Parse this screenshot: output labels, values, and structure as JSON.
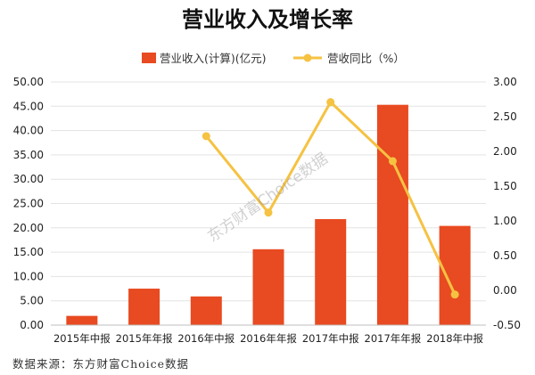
{
  "chart_data": {
    "type": "bar",
    "title": "营业收入及增长率",
    "categories": [
      "2015年中报",
      "2015年年报",
      "2016年中报",
      "2016年年报",
      "2017年中报",
      "2017年年报",
      "2018年中报"
    ],
    "series": [
      {
        "name": "营业收入(计算)(亿元)",
        "type": "bar",
        "axis": "left",
        "color": "#e84a21",
        "values": [
          1.9,
          7.5,
          5.9,
          15.6,
          21.8,
          45.3,
          20.4
        ]
      },
      {
        "name": "营收同比（%）",
        "type": "line",
        "axis": "right",
        "color": "#f5c242",
        "values": [
          null,
          null,
          2.22,
          1.12,
          2.71,
          1.86,
          -0.06
        ]
      }
    ],
    "y_left": {
      "ylim": [
        0,
        50
      ],
      "ticks": [
        "0.00",
        "5.00",
        "10.00",
        "15.00",
        "20.00",
        "25.00",
        "30.00",
        "35.00",
        "40.00",
        "45.00",
        "50.00"
      ]
    },
    "y_right": {
      "ylim": [
        -0.5,
        3.0
      ],
      "ticks": [
        "-0.50",
        "0.00",
        "0.50",
        "1.00",
        "1.50",
        "2.00",
        "2.50",
        "3.00"
      ]
    },
    "grid": true,
    "legend_position": "top-center"
  },
  "watermark": "东方财富Choice数据",
  "footer": "数据来源：东方财富Choice数据"
}
